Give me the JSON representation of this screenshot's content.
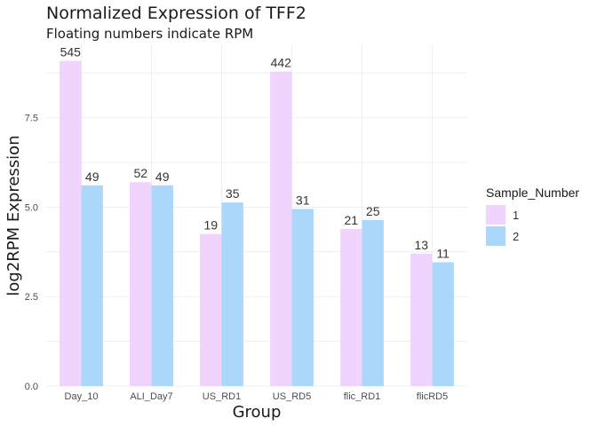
{
  "chart_data": {
    "type": "bar",
    "title": "Normalized Expression of TFF2",
    "subtitle": "Floating numbers indicate RPM",
    "xlabel": "Group",
    "ylabel": "log2RPM Expression",
    "categories": [
      "Day_10",
      "ALI_Day7",
      "US_RD1",
      "US_RD5",
      "flic_RD1",
      "flicRD5"
    ],
    "series": [
      {
        "name": "1",
        "color": "#f0d4fd",
        "values": [
          9.09,
          5.7,
          4.25,
          8.79,
          4.39,
          3.7
        ],
        "labels": [
          "545",
          "52",
          "19",
          "442",
          "21",
          "13"
        ]
      },
      {
        "name": "2",
        "color": "#abd7fb",
        "values": [
          5.61,
          5.61,
          5.13,
          4.95,
          4.64,
          3.46
        ],
        "labels": [
          "49",
          "49",
          "35",
          "31",
          "25",
          "11"
        ]
      }
    ],
    "ylim": [
      0,
      9.55
    ],
    "yticks": [
      0.0,
      2.5,
      5.0,
      7.5
    ],
    "ytick_labels": [
      "0.0",
      "2.5",
      "5.0",
      "7.5"
    ],
    "grid": true,
    "legend": {
      "title": "Sample_Number",
      "position": "right"
    }
  }
}
